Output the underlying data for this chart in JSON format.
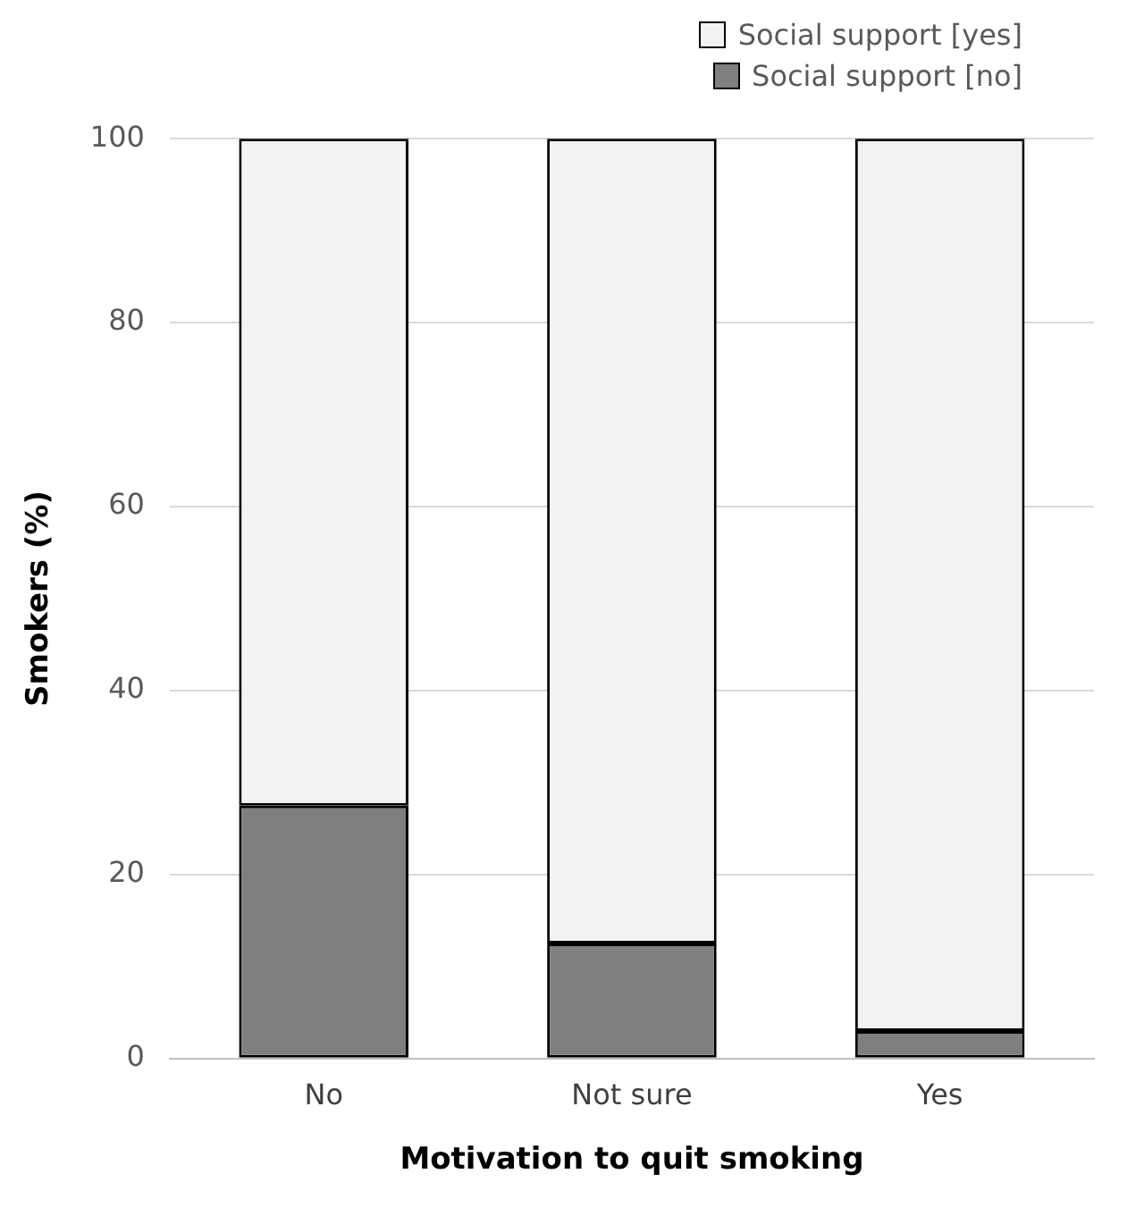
{
  "chart_data": {
    "type": "bar",
    "stacked": true,
    "categories": [
      "No",
      "Not sure",
      "Yes"
    ],
    "xlabel": "Motivation to quit smoking",
    "ylabel": "Smokers (%)",
    "series": [
      {
        "name": "Social support [no]",
        "color": "#7f7f7f",
        "values": [
          27.5,
          12.5,
          3
        ]
      },
      {
        "name": "Social support [yes]",
        "color": "#f2f2f2",
        "values": [
          72.5,
          87.5,
          97
        ]
      }
    ],
    "ylim": [
      0,
      100
    ],
    "yticks": [
      0,
      20,
      40,
      60,
      80,
      100
    ],
    "grid": "y",
    "legend": "top right"
  }
}
